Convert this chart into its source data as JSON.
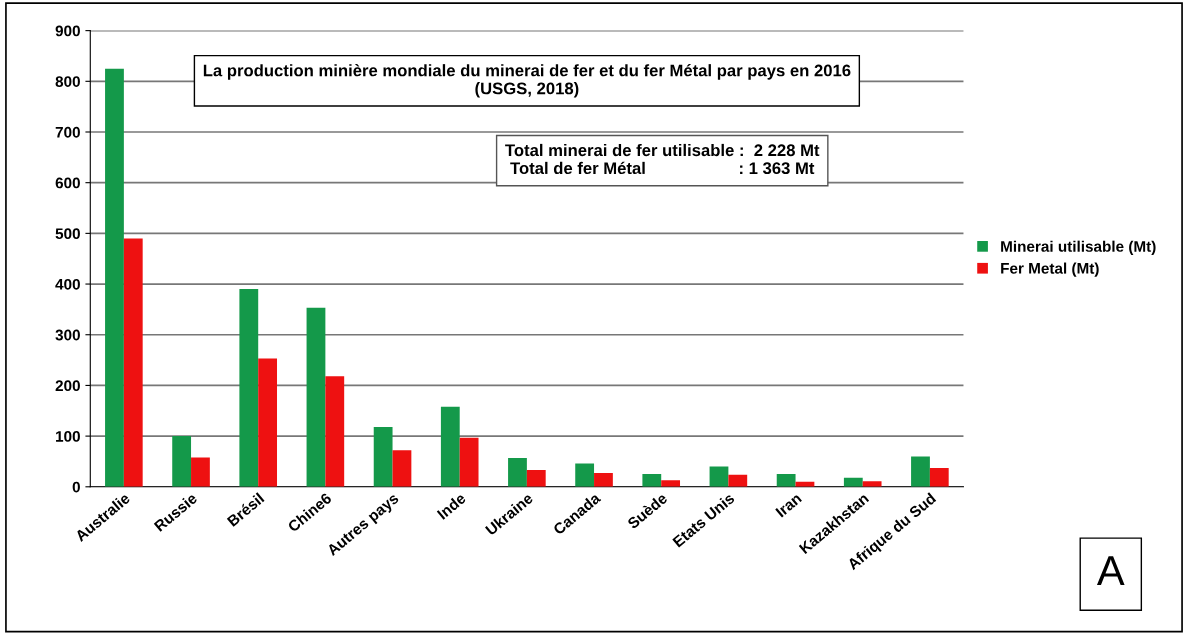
{
  "chart_data": {
    "type": "bar",
    "title": "La production minière mondiale du minerai de fer et du fer Métal par pays en 2016\n(USGS, 2018)",
    "categories": [
      "Australie",
      "Russie",
      "Brésil",
      "Chine6",
      "Autres pays",
      "Inde",
      "Ukraine",
      "Canada",
      "Suède",
      "Etats Unis",
      "Iran",
      "Kazakhstan",
      "Afrique du Sud"
    ],
    "series": [
      {
        "name": "Minerai utilisable (Mt)",
        "color": "#14994a",
        "values": [
          825,
          100,
          390,
          353,
          118,
          158,
          57,
          46,
          25,
          40,
          25,
          18,
          60
        ]
      },
      {
        "name": "Fer Metal (Mt)",
        "color": "#ee1111",
        "values": [
          490,
          58,
          253,
          218,
          72,
          97,
          33,
          27,
          13,
          24,
          10,
          11,
          37
        ]
      }
    ],
    "ylim": [
      0,
      900
    ],
    "yticks": [
      0,
      100,
      200,
      300,
      400,
      500,
      600,
      700,
      800,
      900
    ],
    "grid": "y",
    "legend": "right",
    "annotations": [
      "Total minerai de fer utilisable :  2 228 Mt\nTotal de fer Métal                    : 1 363 Mt",
      "A"
    ]
  }
}
